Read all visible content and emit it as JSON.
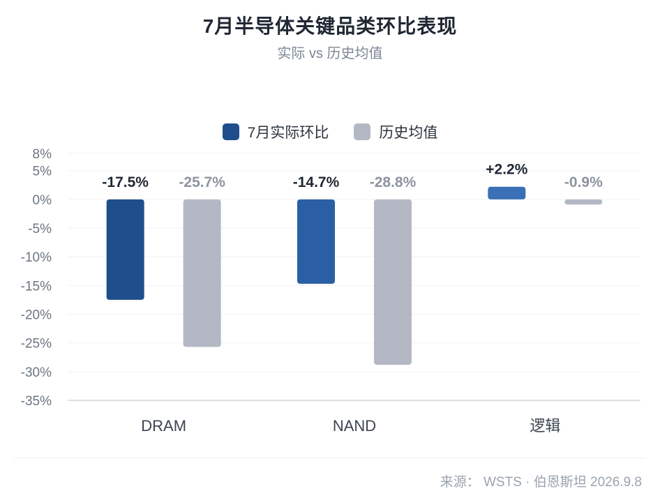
{
  "header": {
    "title": "7月半导体关键品类环比表现",
    "subtitle": "实际 vs 历史均值"
  },
  "legend": [
    {
      "label": "7月实际环比",
      "color": "#1f4e8c"
    },
    {
      "label": "历史均值",
      "color": "#b3b8c4"
    }
  ],
  "footer": {
    "source": "来源： WSTS · 伯恩斯坦 2026.9.8"
  },
  "chart_data": {
    "type": "bar",
    "title": "7月半导体关键品类环比表现",
    "subtitle": "实际 vs 历史均值",
    "categories": [
      "DRAM",
      "NAND",
      "逻辑"
    ],
    "series": [
      {
        "name": "7月实际环比",
        "values": [
          -17.5,
          -14.7,
          2.2
        ],
        "labels": [
          "-17.5%",
          "-14.7%",
          "+2.2%"
        ],
        "colors": [
          "#1f4e8c",
          "#2a5fa3",
          "#3b6fb6"
        ]
      },
      {
        "name": "历史均值",
        "values": [
          -25.7,
          -28.8,
          -0.9
        ],
        "labels": [
          "-25.7%",
          "-28.8%",
          "-0.9%"
        ],
        "colors": [
          "#b3b8c4",
          "#b3b8c4",
          "#b3b8c4"
        ]
      }
    ],
    "yticks": [
      "8%",
      "5%",
      "0%",
      "-5%",
      "-10%",
      "-15%",
      "-20%",
      "-25%",
      "-30%",
      "-35%"
    ],
    "ytick_values": [
      8,
      5,
      0,
      -5,
      -10,
      -15,
      -20,
      -25,
      -30,
      -35
    ],
    "ylim": [
      -35,
      8
    ],
    "grid": true,
    "legend_position": "top-center"
  }
}
